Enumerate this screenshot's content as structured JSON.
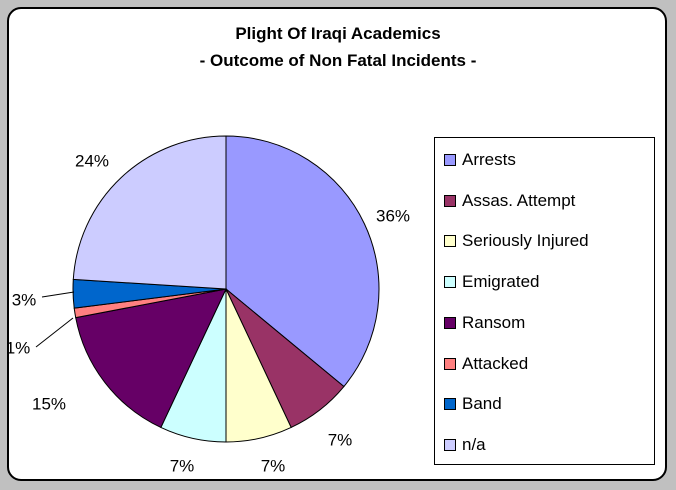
{
  "chart_data": {
    "type": "pie",
    "title_lines": [
      "Plight Of Iraqi Academics",
      "- Outcome of Non Fatal Incidents -"
    ],
    "categories": [
      "Arrests",
      "Assas. Attempt",
      "Seriously Injured",
      "Emigrated",
      "Ransom",
      "Attacked",
      "Band",
      "n/a"
    ],
    "values": [
      36,
      7,
      7,
      7,
      15,
      1,
      3,
      24
    ],
    "labels": [
      "36%",
      "7%",
      "7%",
      "7%",
      "15%",
      "1%",
      "3%",
      "24%"
    ],
    "colors": [
      "#9999ff",
      "#993366",
      "#ffffcc",
      "#ccffff",
      "#660066",
      "#ff8080",
      "#0066cc",
      "#ccccff"
    ],
    "legend_position": "right"
  }
}
